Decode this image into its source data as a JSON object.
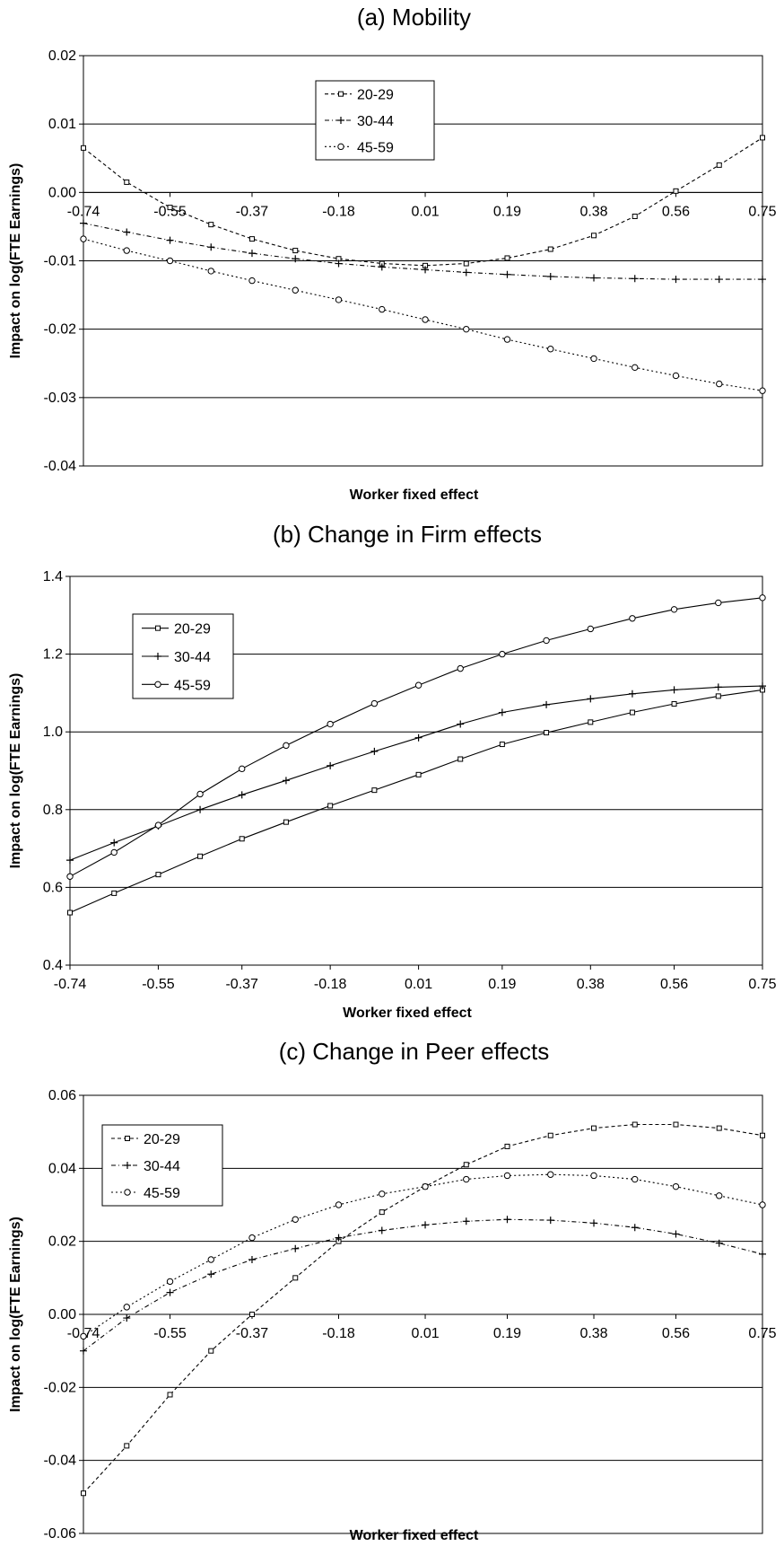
{
  "chart_data": [
    {
      "type": "line",
      "title": "(a) Mobility",
      "xlabel": "Worker fixed effect",
      "ylabel": "Impact on log(FTE Earnings)",
      "xlim": [
        -0.74,
        0.75
      ],
      "ylim": [
        -0.04,
        0.02
      ],
      "x_ticks": [
        "-0.74",
        "-0.55",
        "-0.37",
        "-0.18",
        "0.01",
        "0.19",
        "0.38",
        "0.56",
        "0.75"
      ],
      "y_ticks": [
        "0.02",
        "0.01",
        "0.00",
        "-0.01",
        "-0.02",
        "-0.03",
        "-0.04"
      ],
      "grid": "horizontal",
      "x_tick_position": "zero-line",
      "legend_position": "top-center",
      "x": [
        -0.74,
        -0.645,
        -0.55,
        -0.46,
        -0.37,
        -0.275,
        -0.18,
        -0.085,
        0.01,
        0.1,
        0.19,
        0.285,
        0.38,
        0.47,
        0.56,
        0.655,
        0.75
      ],
      "series": [
        {
          "name": "20-29",
          "marker": "square",
          "values": [
            0.0065,
            0.0015,
            -0.0022,
            -0.0047,
            -0.0068,
            -0.0085,
            -0.0097,
            -0.0104,
            -0.0107,
            -0.0104,
            -0.0096,
            -0.0083,
            -0.0063,
            -0.0035,
            0.0002,
            0.004,
            0.008
          ]
        },
        {
          "name": "30-44",
          "marker": "plus",
          "values": [
            -0.0045,
            -0.0058,
            -0.007,
            -0.008,
            -0.0089,
            -0.0097,
            -0.0104,
            -0.0109,
            -0.0113,
            -0.0117,
            -0.012,
            -0.0123,
            -0.0125,
            -0.0126,
            -0.0127,
            -0.0127,
            -0.0127
          ]
        },
        {
          "name": "45-59",
          "marker": "circle",
          "values": [
            -0.0068,
            -0.0085,
            -0.01,
            -0.0115,
            -0.0129,
            -0.0143,
            -0.0157,
            -0.0171,
            -0.0186,
            -0.02,
            -0.0215,
            -0.0229,
            -0.0243,
            -0.0256,
            -0.0268,
            -0.028,
            -0.029
          ]
        }
      ]
    },
    {
      "type": "line",
      "title": "(b) Change in Firm effects",
      "xlabel": "Worker fixed effect",
      "ylabel": "Impact on log(FTE Earnings)",
      "xlim": [
        -0.74,
        0.75
      ],
      "ylim": [
        0.4,
        1.4
      ],
      "x_ticks": [
        "-0.74",
        "-0.55",
        "-0.37",
        "-0.18",
        "0.01",
        "0.19",
        "0.38",
        "0.56",
        "0.75"
      ],
      "y_ticks": [
        "1.4",
        "1.2",
        "1.0",
        "0.8",
        "0.6",
        "0.4"
      ],
      "grid": "horizontal",
      "x_tick_position": "bottom",
      "legend_position": "top-left",
      "x": [
        -0.74,
        -0.645,
        -0.55,
        -0.46,
        -0.37,
        -0.275,
        -0.18,
        -0.085,
        0.01,
        0.1,
        0.19,
        0.285,
        0.38,
        0.47,
        0.56,
        0.655,
        0.75
      ],
      "series": [
        {
          "name": "20-29",
          "marker": "square",
          "values": [
            0.535,
            0.585,
            0.633,
            0.68,
            0.725,
            0.768,
            0.81,
            0.85,
            0.89,
            0.93,
            0.968,
            0.998,
            1.025,
            1.05,
            1.072,
            1.092,
            1.108
          ]
        },
        {
          "name": "30-44",
          "marker": "plus",
          "values": [
            0.67,
            0.715,
            0.758,
            0.8,
            0.838,
            0.875,
            0.913,
            0.95,
            0.985,
            1.02,
            1.05,
            1.07,
            1.085,
            1.098,
            1.108,
            1.115,
            1.118
          ]
        },
        {
          "name": "45-59",
          "marker": "circle",
          "values": [
            0.628,
            0.69,
            0.76,
            0.84,
            0.905,
            0.965,
            1.02,
            1.073,
            1.12,
            1.163,
            1.2,
            1.235,
            1.265,
            1.292,
            1.315,
            1.332,
            1.345
          ]
        }
      ]
    },
    {
      "type": "line",
      "title": "(c) Change in Peer effects",
      "xlabel": "Worker fixed effect",
      "ylabel": "Impact on log(FTE Earnings)",
      "xlim": [
        -0.74,
        0.75
      ],
      "ylim": [
        -0.06,
        0.06
      ],
      "x_ticks": [
        "-0.74",
        "-0.55",
        "-0.37",
        "-0.18",
        "0.01",
        "0.19",
        "0.38",
        "0.56",
        "0.75"
      ],
      "y_ticks": [
        "0.06",
        "0.04",
        "0.02",
        "0.00",
        "-0.02",
        "-0.04",
        "-0.06"
      ],
      "grid": "horizontal",
      "x_tick_position": "zero-line",
      "legend_position": "top-left",
      "x": [
        -0.74,
        -0.645,
        -0.55,
        -0.46,
        -0.37,
        -0.275,
        -0.18,
        -0.085,
        0.01,
        0.1,
        0.19,
        0.285,
        0.38,
        0.47,
        0.56,
        0.655,
        0.75
      ],
      "series": [
        {
          "name": "20-29",
          "marker": "square",
          "values": [
            -0.049,
            -0.036,
            -0.022,
            -0.01,
            0.0,
            0.01,
            0.02,
            0.028,
            0.035,
            0.041,
            0.046,
            0.049,
            0.051,
            0.052,
            0.052,
            0.051,
            0.049
          ]
        },
        {
          "name": "30-44",
          "marker": "plus",
          "values": [
            -0.01,
            -0.001,
            0.006,
            0.011,
            0.015,
            0.018,
            0.021,
            0.023,
            0.0245,
            0.0255,
            0.026,
            0.0258,
            0.025,
            0.0238,
            0.022,
            0.0195,
            0.0165
          ]
        },
        {
          "name": "45-59",
          "marker": "circle",
          "values": [
            -0.006,
            0.002,
            0.009,
            0.015,
            0.021,
            0.026,
            0.03,
            0.033,
            0.035,
            0.037,
            0.038,
            0.0383,
            0.038,
            0.037,
            0.035,
            0.0325,
            0.03
          ]
        }
      ]
    }
  ]
}
